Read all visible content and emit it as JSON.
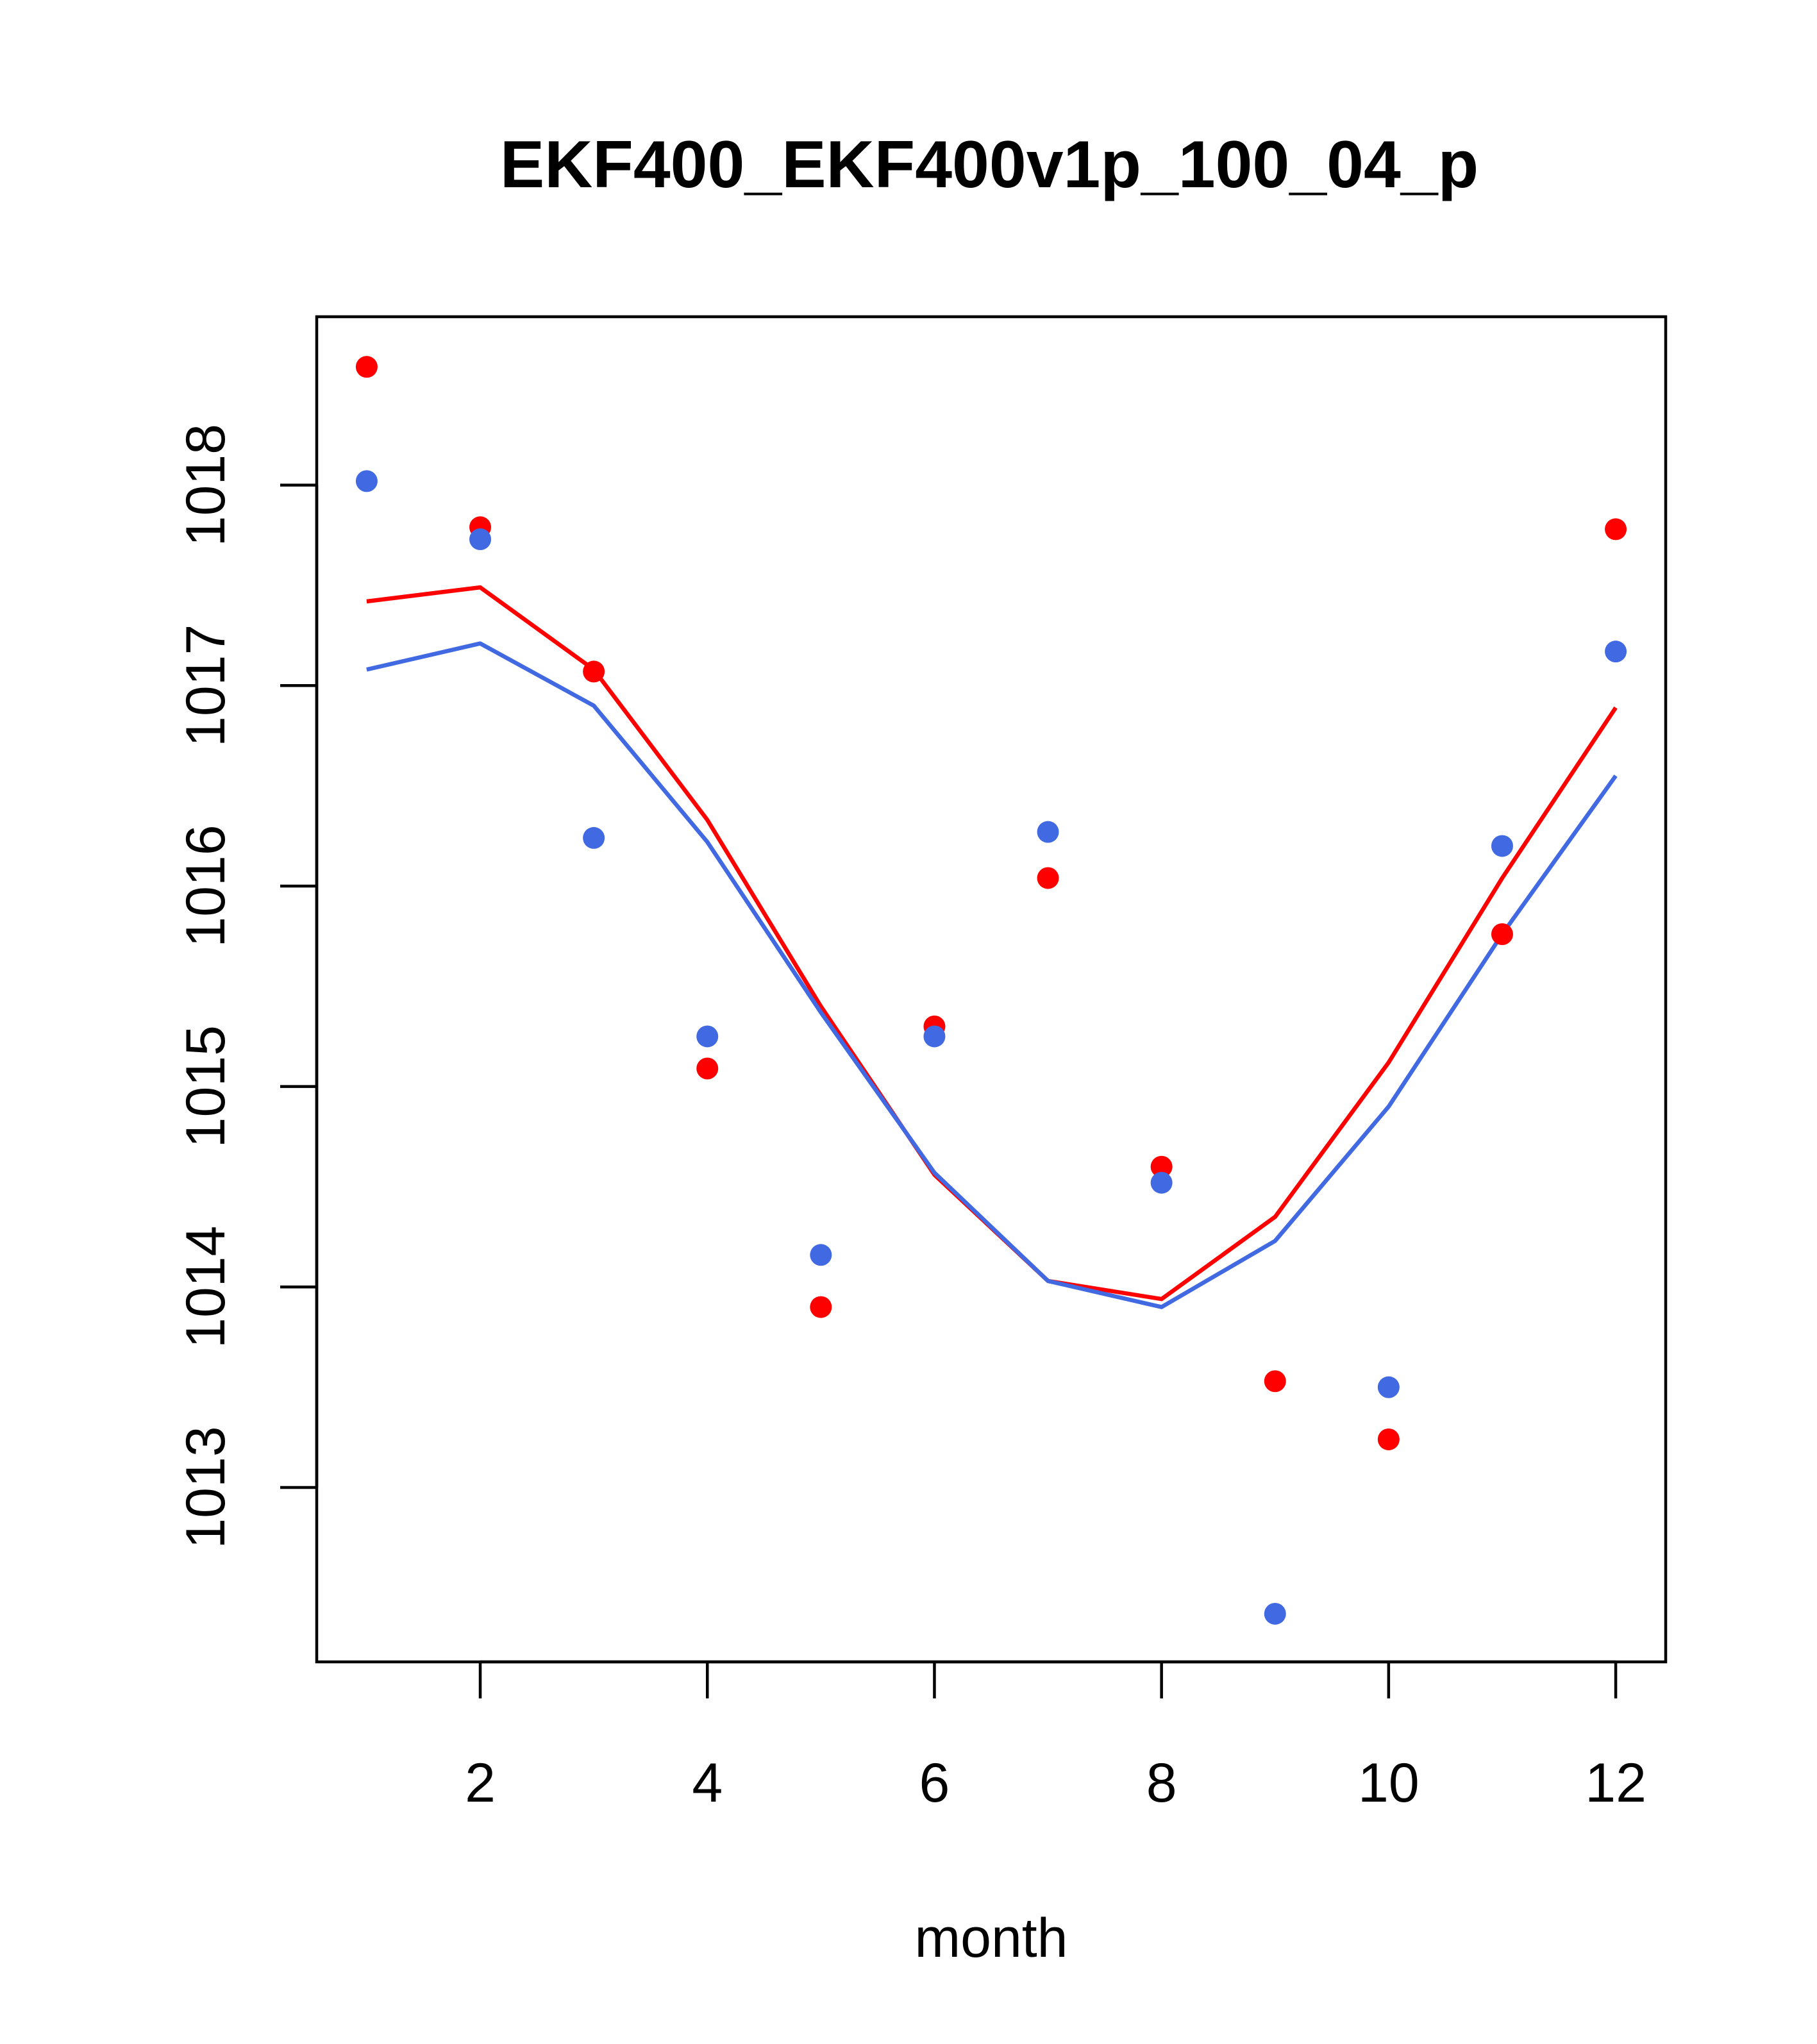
{
  "chart_data": {
    "type": "line",
    "title": "EKF400_EKF400v1p_100_04_p",
    "xlabel": "month",
    "ylabel": "",
    "xlim": [
      0.56,
      12.44
    ],
    "ylim": [
      1012.13,
      1018.84
    ],
    "x_ticks": [
      2,
      4,
      6,
      8,
      10,
      12
    ],
    "x_tick_labels": [
      "2",
      "4",
      "6",
      "8",
      "10",
      "12"
    ],
    "y_ticks": [
      1013,
      1014,
      1015,
      1016,
      1017,
      1018
    ],
    "y_tick_labels": [
      "1013",
      "1014",
      "1015",
      "1016",
      "1017",
      "1018"
    ],
    "grid": false,
    "legend": "none",
    "x": [
      1,
      2,
      3,
      4,
      5,
      6,
      7,
      8,
      9,
      10,
      11,
      12
    ],
    "series": [
      {
        "color": "#FF0000",
        "points": [
          1018.59,
          1017.79,
          1017.07,
          1015.09,
          1013.9,
          1015.3,
          1016.04,
          1014.6,
          1013.53,
          1013.24,
          1015.76,
          1017.78
        ],
        "line": [
          1017.42,
          1017.49,
          1017.08,
          1016.33,
          1015.4,
          1014.56,
          1014.03,
          1013.94,
          1014.35,
          1015.12,
          1016.04,
          1016.89
        ]
      },
      {
        "color": "#4169E1",
        "points": [
          1018.02,
          1017.73,
          1016.24,
          1015.25,
          1014.16,
          1015.25,
          1016.27,
          1014.52,
          1012.37,
          1013.5,
          1016.2,
          1017.17
        ],
        "line": [
          1017.08,
          1017.21,
          1016.9,
          1016.22,
          1015.37,
          1014.57,
          1014.03,
          1013.9,
          1014.23,
          1014.9,
          1015.76,
          1016.55
        ]
      }
    ]
  }
}
